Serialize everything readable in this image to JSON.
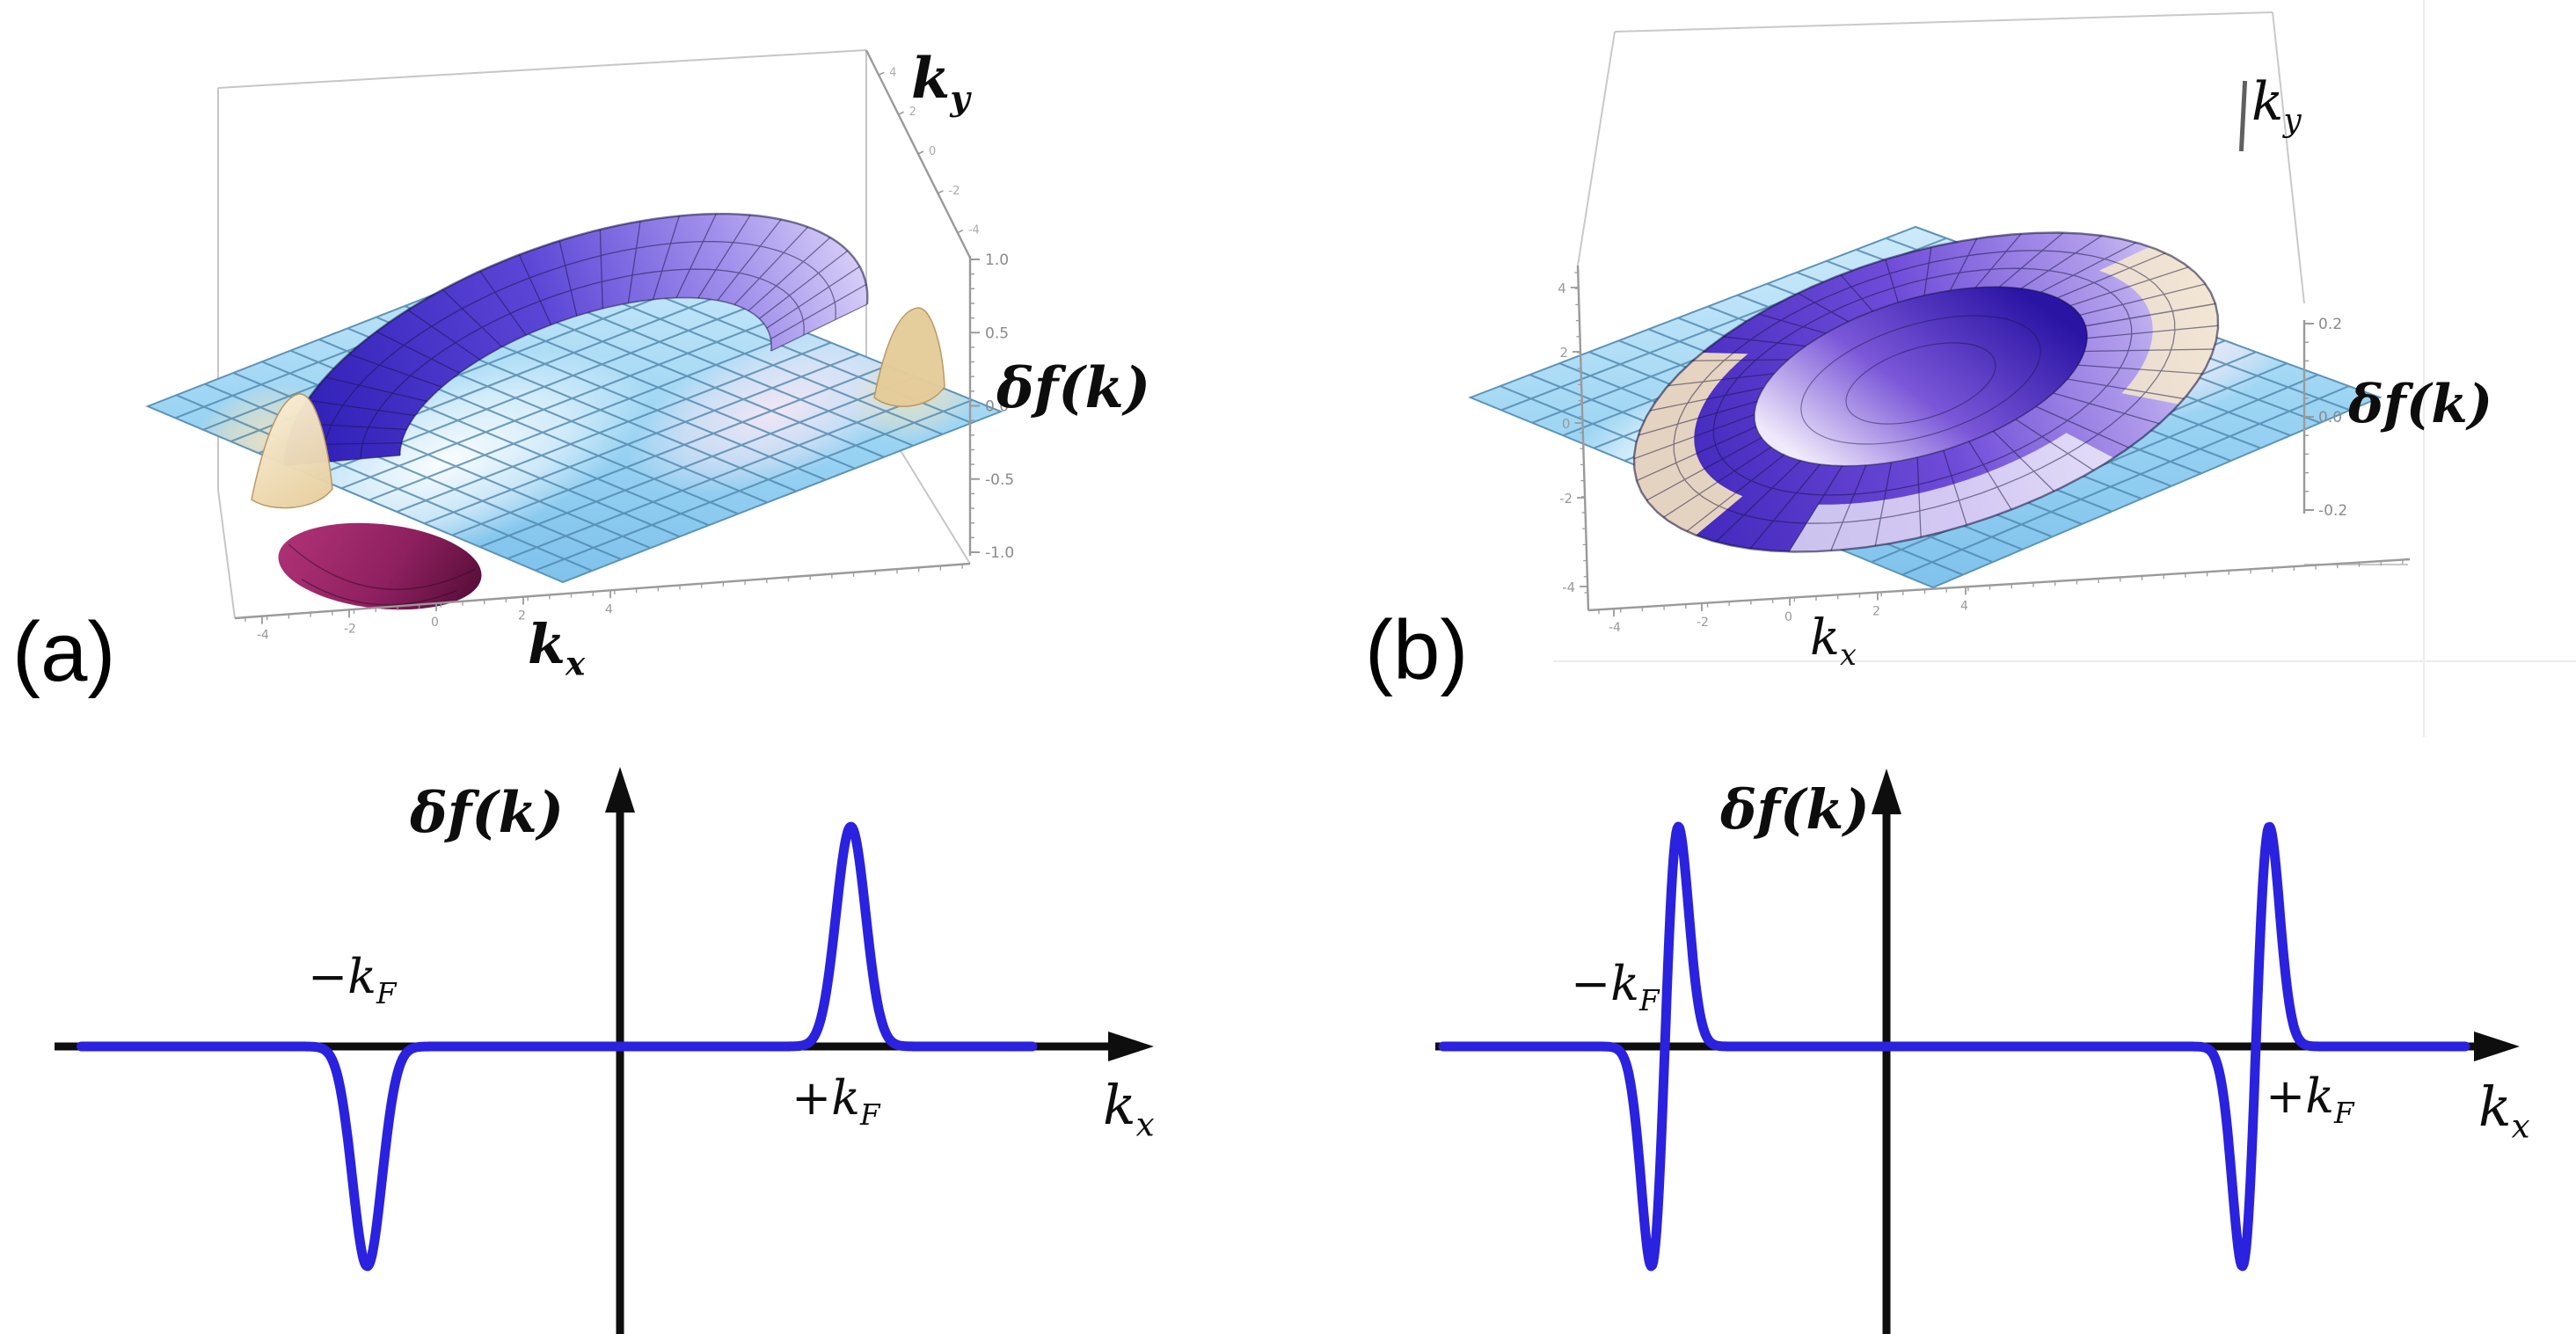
{
  "figure": {
    "type": "two-panel quasiparticle distribution figure",
    "background": "#ffffff",
    "panel_tags": {
      "a": "(a)",
      "b": "(b)"
    }
  },
  "colors": {
    "curve_blue": "#2a22de",
    "axis_black": "#0e0e0e",
    "plane_blue": "#8ecdf2",
    "plane_grid": "#4f86ac",
    "ridge_indigo": "#3220c6",
    "ridge_purple": "#6d55dd",
    "ridge_lavender": "#cfc4f4",
    "peak_cream": "#f3e2c1",
    "under_magenta": "#951f5e",
    "frame_gray": "#9a9a9a",
    "tick_text_gray": "#8a8a8a"
  },
  "labels": {
    "a3d": {
      "ky": {
        "base": "k",
        "sub": "y"
      },
      "kx": {
        "base": "k",
        "sub": "x"
      },
      "z": {
        "pre": "δf(",
        "karg": "k",
        "post": ")"
      }
    },
    "b3d": {
      "ky": {
        "base": "k",
        "sub": "y"
      },
      "kx": {
        "base": "k",
        "sub": "x"
      },
      "z": {
        "pre": "δf(",
        "karg": "k",
        "post": ")"
      }
    },
    "a1d": {
      "y": {
        "pre": "δf(",
        "karg": "k",
        "post": ")"
      },
      "x": {
        "base": "k",
        "sub": "x"
      },
      "neg": {
        "sign": "−",
        "base": "k",
        "sub": "F"
      },
      "pos": {
        "sign": "+",
        "base": "k",
        "sub": "F"
      }
    },
    "b1d": {
      "y": {
        "pre": "δf(",
        "karg": "k",
        "post": ")"
      },
      "x": {
        "base": "k",
        "sub": "x"
      },
      "neg": {
        "sign": "−",
        "base": "k",
        "sub": "F"
      },
      "pos": {
        "sign": "+",
        "base": "k",
        "sub": "F"
      }
    }
  },
  "chart_data": [
    {
      "id": "surface-a",
      "type": "surface",
      "panel": "a",
      "title": "",
      "xlabel": "k_x",
      "ylabel": "k_y",
      "zlabel": "δf(k)",
      "x_ticks": [
        "-4",
        "-2",
        "0",
        "2",
        "4"
      ],
      "y_ticks": [
        "4",
        "2",
        "0",
        "-2",
        "-4"
      ],
      "z_ticks": [
        "1.0",
        "0.5",
        "0.0",
        "-0.5",
        "-1.0"
      ],
      "x_range": [
        -5,
        5
      ],
      "y_range": [
        -5,
        5
      ],
      "z_range": [
        -1.0,
        1.0
      ],
      "grid": true,
      "description": "Mesh surface of δf(k) over (kx,ky) on a flat light-blue checkered plane: along the Fermi ring |k|≈kF the surface is pushed up on the kx>0 side (indigo/blue crescent ridge with cream peaks) and pushed down on the kx<0 side (magenta lobe hanging under the plane) — odd, current-like deformation."
    },
    {
      "id": "surface-b",
      "type": "surface",
      "panel": "b",
      "title": "",
      "xlabel": "k_x",
      "ylabel": "k_y",
      "zlabel": "δf(k)",
      "x_ticks": [
        "-4",
        "-2",
        "0",
        "2",
        "4"
      ],
      "y_ticks": [
        "4",
        "2",
        "0",
        "-2",
        "-4"
      ],
      "z_ticks": [
        "0.2",
        "0.0",
        "-0.2"
      ],
      "x_range": [
        -5,
        5
      ],
      "y_range": [
        -5,
        5
      ],
      "z_range": [
        -0.2,
        0.2
      ],
      "grid": true,
      "description": "Mesh surface of δf(k): a complete raised crater ring around |k|≈kF (purple/indigo walls with cream rim highlights) and a depression inside the ring; the same structure appears for +kx and −kx — even, breathing-type deformation."
    },
    {
      "id": "line-a",
      "type": "line",
      "panel": "a",
      "title": "",
      "xlabel": "k_x",
      "ylabel": "δf(k)",
      "line_color": "#2a22de",
      "x_range": [
        -4.9,
        3.75
      ],
      "axis_x_range": [
        -5.15,
        4.85
      ],
      "y_range": [
        -1.31,
        1.26
      ],
      "baseline": 0,
      "grid": false,
      "features": [
        {
          "x": -2.3,
          "label": "−k_F",
          "shape": "gaussian",
          "amplitude": -1.0,
          "sigma": 0.19
        },
        {
          "x": 2.1,
          "label": "+k_F",
          "shape": "gaussian",
          "amplitude": 1.0,
          "sigma": 0.19
        }
      ],
      "description": "Cut of panel (a) along kx: δf is zero everywhere except a sharp negative Gaussian dip at −kF and an equal sharp positive Gaussian peak at +kF."
    },
    {
      "id": "line-b",
      "type": "line",
      "panel": "b",
      "title": "",
      "xlabel": "k_x",
      "ylabel": "δf(k)",
      "line_color": "#2a22de",
      "x_range": [
        -3.6,
        4.7
      ],
      "axis_x_range": [
        -3.7,
        5.1
      ],
      "y_range": [
        -1.31,
        1.26
      ],
      "baseline": 0,
      "grid": false,
      "features": [
        {
          "x": -1.8,
          "label": "−k_F",
          "shape": "gaussian-derivative",
          "amplitude": 1.0,
          "sigma": 0.11
        },
        {
          "x": 3.0,
          "label": "+k_F",
          "shape": "gaussian-derivative",
          "amplitude": 1.0,
          "sigma": 0.11
        }
      ],
      "description": "Cut of panel (b) along kx: at each Fermi point a derivative-of-Gaussian wiggle — dip immediately left and peak immediately right of ±kF, with the same orientation at both points; zero elsewhere."
    }
  ]
}
